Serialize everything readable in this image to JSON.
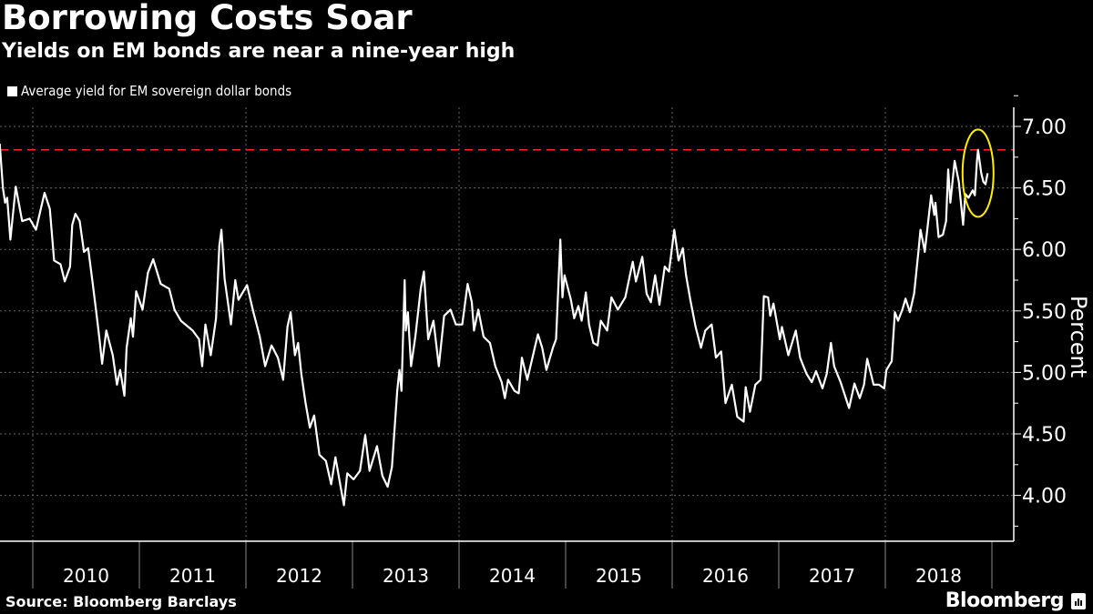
{
  "header": {
    "title": "Borrowing Costs Soar",
    "subtitle": "Yields on EM bonds are near a nine-year high"
  },
  "footer": {
    "source": "Source: Bloomberg Barclays",
    "logo": "Bloomberg"
  },
  "colors": {
    "line": "#ffffff",
    "reference": "#ff2a2a",
    "highlight": "#ffee00",
    "grid": "#666666"
  },
  "chart_data": {
    "type": "line",
    "title": "Borrowing Costs Soar",
    "subtitle": "Yields on EM bonds are near a nine-year high",
    "xlabel": "",
    "ylabel": "Percent",
    "ylim": [
      3.6,
      7.2
    ],
    "xlim": [
      2009.69,
      2019.2
    ],
    "yticks": [
      "4.00",
      "4.50",
      "5.00",
      "5.50",
      "6.00",
      "6.50",
      "7.00"
    ],
    "ytick_values": [
      4.0,
      4.5,
      5.0,
      5.5,
      6.0,
      6.5,
      7.0
    ],
    "xticks": [
      "2010",
      "2011",
      "2012",
      "2013",
      "2014",
      "2015",
      "2016",
      "2017",
      "2018"
    ],
    "grid": true,
    "legend": "top-left",
    "reference_line": {
      "value": 6.81,
      "style": "dashed"
    },
    "highlight": {
      "x": 2018.87,
      "y": 6.62,
      "shape": "ellipse"
    },
    "series": [
      {
        "name": "Average yield for EM sovereign dollar bonds",
        "x": [
          2009.69,
          2009.72,
          2009.74,
          2009.76,
          2009.79,
          2009.84,
          2009.9,
          2009.97,
          2010.03,
          2010.11,
          2010.16,
          2010.2,
          2010.26,
          2010.3,
          2010.35,
          2010.37,
          2010.4,
          2010.44,
          2010.48,
          2010.52,
          2010.56,
          2010.6,
          2010.63,
          2010.65,
          2010.69,
          2010.75,
          2010.79,
          2010.82,
          2010.86,
          2010.88,
          2010.92,
          2010.94,
          2010.97,
          2011.03,
          2011.08,
          2011.13,
          2011.2,
          2011.28,
          2011.33,
          2011.39,
          2011.5,
          2011.56,
          2011.59,
          2011.62,
          2011.67,
          2011.72,
          2011.75,
          2011.77,
          2011.8,
          2011.86,
          2011.9,
          2011.93,
          2012.01,
          2012.07,
          2012.13,
          2012.18,
          2012.24,
          2012.3,
          2012.35,
          2012.39,
          2012.42,
          2012.46,
          2012.49,
          2012.52,
          2012.56,
          2012.6,
          2012.64,
          2012.69,
          2012.75,
          2012.8,
          2012.84,
          2012.88,
          2012.92,
          2012.95,
          2013.01,
          2013.07,
          2013.12,
          2013.16,
          2013.23,
          2013.28,
          2013.33,
          2013.37,
          2013.42,
          2013.44,
          2013.46,
          2013.49,
          2013.5,
          2013.52,
          2013.55,
          2013.59,
          2013.64,
          2013.67,
          2013.71,
          2013.76,
          2013.81,
          2013.86,
          2013.92,
          2013.97,
          2014.03,
          2014.08,
          2014.12,
          2014.14,
          2014.18,
          2014.23,
          2014.29,
          2014.34,
          2014.4,
          2014.43,
          2014.46,
          2014.52,
          2014.56,
          2014.59,
          2014.64,
          2014.71,
          2014.74,
          2014.78,
          2014.82,
          2014.88,
          2014.91,
          2014.93,
          2014.95,
          2014.97,
          2014.99,
          2015.05,
          2015.08,
          2015.12,
          2015.15,
          2015.19,
          2015.22,
          2015.26,
          2015.3,
          2015.33,
          2015.39,
          2015.43,
          2015.49,
          2015.56,
          2015.63,
          2015.66,
          2015.72,
          2015.76,
          2015.8,
          2015.84,
          2015.88,
          2015.93,
          2015.97,
          2016.02,
          2016.06,
          2016.1,
          2016.13,
          2016.17,
          2016.22,
          2016.27,
          2016.31,
          2016.37,
          2016.41,
          2016.46,
          2016.5,
          2016.56,
          2016.61,
          2016.67,
          2016.69,
          2016.73,
          2016.78,
          2016.83,
          2016.86,
          2016.9,
          2016.92,
          2016.95,
          2017.01,
          2017.03,
          2017.09,
          2017.16,
          2017.2,
          2017.26,
          2017.31,
          2017.35,
          2017.41,
          2017.45,
          2017.49,
          2017.52,
          2017.58,
          2017.66,
          2017.71,
          2017.76,
          2017.8,
          2017.83,
          2017.89,
          2017.94,
          2017.99,
          2018.01,
          2018.06,
          2018.09,
          2018.12,
          2018.16,
          2018.19,
          2018.23,
          2018.27,
          2018.31,
          2018.33,
          2018.36,
          2018.37,
          2018.43,
          2018.46,
          2018.47,
          2018.5,
          2018.54,
          2018.57,
          2018.59,
          2018.61,
          2018.65,
          2018.69,
          2018.73,
          2018.75,
          2018.78,
          2018.82,
          2018.84,
          2018.86,
          2018.87,
          2018.9,
          2018.92,
          2018.94,
          2018.96
        ],
        "y": [
          6.86,
          6.5,
          6.38,
          6.42,
          6.08,
          6.51,
          6.23,
          6.25,
          6.16,
          6.46,
          6.33,
          5.91,
          5.88,
          5.74,
          5.86,
          6.2,
          6.29,
          6.23,
          5.98,
          6.01,
          5.74,
          5.46,
          5.24,
          5.07,
          5.34,
          5.14,
          4.9,
          5.02,
          4.81,
          5.2,
          5.44,
          5.29,
          5.66,
          5.51,
          5.81,
          5.92,
          5.72,
          5.68,
          5.51,
          5.42,
          5.34,
          5.27,
          5.05,
          5.39,
          5.14,
          5.44,
          6.03,
          6.16,
          5.76,
          5.39,
          5.75,
          5.59,
          5.71,
          5.49,
          5.29,
          5.05,
          5.22,
          5.12,
          4.94,
          5.37,
          5.49,
          5.14,
          5.24,
          4.99,
          4.75,
          4.55,
          4.65,
          4.33,
          4.28,
          4.09,
          4.31,
          4.11,
          3.92,
          4.18,
          4.13,
          4.2,
          4.49,
          4.2,
          4.4,
          4.16,
          4.07,
          4.23,
          4.85,
          5.02,
          4.85,
          5.75,
          5.34,
          5.49,
          5.05,
          5.29,
          5.68,
          5.82,
          5.27,
          5.42,
          5.05,
          5.46,
          5.51,
          5.39,
          5.39,
          5.72,
          5.57,
          5.34,
          5.51,
          5.29,
          5.24,
          5.05,
          4.92,
          4.79,
          4.94,
          4.85,
          4.83,
          5.12,
          4.94,
          5.2,
          5.31,
          5.2,
          5.02,
          5.2,
          5.27,
          5.66,
          6.08,
          5.61,
          5.79,
          5.59,
          5.44,
          5.54,
          5.42,
          5.65,
          5.39,
          5.24,
          5.22,
          5.42,
          5.34,
          5.61,
          5.51,
          5.61,
          5.9,
          5.74,
          5.94,
          5.64,
          5.57,
          5.79,
          5.55,
          5.86,
          5.82,
          6.16,
          5.91,
          6.01,
          5.79,
          5.59,
          5.37,
          5.2,
          5.34,
          5.39,
          5.12,
          5.17,
          4.75,
          4.9,
          4.64,
          4.6,
          4.88,
          4.68,
          4.9,
          4.94,
          5.62,
          5.61,
          5.46,
          5.56,
          5.27,
          5.37,
          5.14,
          5.34,
          5.12,
          4.99,
          4.92,
          5.01,
          4.87,
          4.99,
          5.24,
          5.05,
          4.92,
          4.71,
          4.91,
          4.79,
          4.9,
          5.11,
          4.9,
          4.9,
          4.87,
          5.02,
          5.09,
          5.49,
          5.42,
          5.51,
          5.6,
          5.49,
          5.64,
          5.98,
          6.16,
          6.03,
          5.98,
          6.44,
          6.28,
          6.38,
          6.1,
          6.12,
          6.23,
          6.65,
          6.38,
          6.72,
          6.55,
          6.2,
          6.45,
          6.42,
          6.48,
          6.44,
          6.72,
          6.81,
          6.62,
          6.55,
          6.53,
          6.62
        ]
      }
    ]
  }
}
